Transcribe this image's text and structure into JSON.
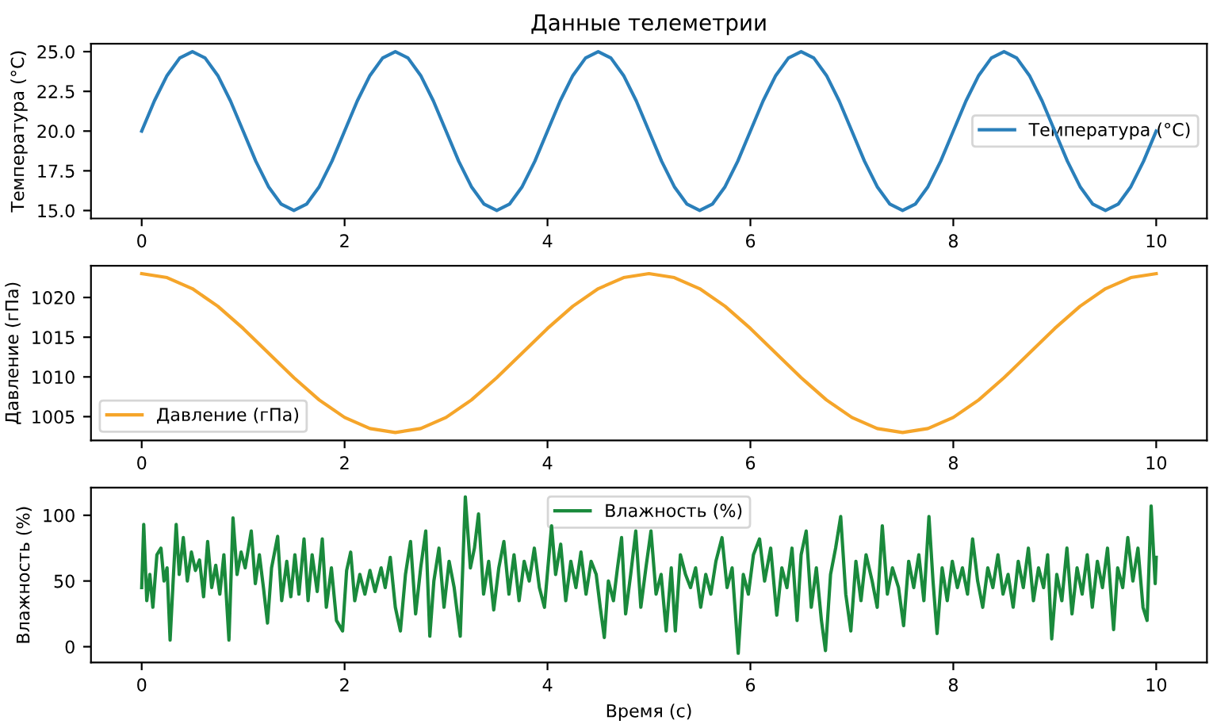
{
  "chart_data": [
    {
      "type": "line",
      "title": "Данные телеметрии",
      "ylabel": "Температура (°C)",
      "legend": "center right",
      "grid": false,
      "xlim": [
        -0.5,
        10.5
      ],
      "ylim": [
        14.5,
        25.5
      ],
      "xticks": [
        0,
        2,
        4,
        6,
        8,
        10
      ],
      "yticks": [
        {
          "value": 15,
          "label": "15.0"
        },
        17.5,
        {
          "value": 20,
          "label": "20.0"
        },
        22.5,
        {
          "value": 25,
          "label": "25.0"
        }
      ],
      "x": [
        0,
        0.125,
        0.25,
        0.375,
        0.5,
        0.625,
        0.75,
        0.875,
        1,
        1.125,
        1.25,
        1.375,
        1.5,
        1.625,
        1.75,
        1.875,
        2,
        2.125,
        2.25,
        2.375,
        2.5,
        2.625,
        2.75,
        2.875,
        3,
        3.125,
        3.25,
        3.375,
        3.5,
        3.625,
        3.75,
        3.875,
        4,
        4.125,
        4.25,
        4.375,
        4.5,
        4.625,
        4.75,
        4.875,
        5,
        5.125,
        5.25,
        5.375,
        5.5,
        5.625,
        5.75,
        5.875,
        6,
        6.125,
        6.25,
        6.375,
        6.5,
        6.625,
        6.75,
        6.875,
        7,
        7.125,
        7.25,
        7.375,
        7.5,
        7.625,
        7.75,
        7.875,
        8,
        8.125,
        8.25,
        8.375,
        8.5,
        8.625,
        8.75,
        8.875,
        9,
        9.125,
        9.25,
        9.375,
        9.5,
        9.625,
        9.75,
        9.875,
        10
      ],
      "series": [
        {
          "name": "Температура (°C)",
          "color": "#2a7fba",
          "values": [
            20,
            21.9,
            23.5,
            24.6,
            25,
            24.6,
            23.5,
            21.9,
            20,
            18.1,
            16.5,
            15.4,
            15,
            15.4,
            16.5,
            18.1,
            20,
            21.9,
            23.5,
            24.6,
            25,
            24.6,
            23.5,
            21.9,
            20,
            18.1,
            16.5,
            15.4,
            15,
            15.4,
            16.5,
            18.1,
            20,
            21.9,
            23.5,
            24.6,
            25,
            24.6,
            23.5,
            21.9,
            20,
            18.1,
            16.5,
            15.4,
            15,
            15.4,
            16.5,
            18.1,
            20,
            21.9,
            23.5,
            24.6,
            25,
            24.6,
            23.5,
            21.9,
            20,
            18.1,
            16.5,
            15.4,
            15,
            15.4,
            16.5,
            18.1,
            20,
            21.9,
            23.5,
            24.6,
            25,
            24.6,
            23.5,
            21.9,
            20,
            18.1,
            16.5,
            15.4,
            15,
            15.4,
            16.5,
            18.1,
            20
          ]
        }
      ]
    },
    {
      "type": "line",
      "ylabel": "Давление (гПа)",
      "legend": "bottom left",
      "grid": false,
      "xlim": [
        -0.5,
        10.5
      ],
      "ylim": [
        1002,
        1024
      ],
      "xticks": [
        0,
        2,
        4,
        6,
        8,
        10
      ],
      "yticks": [
        1005,
        1010,
        1015,
        1020
      ],
      "x": [
        0,
        0.25,
        0.5,
        0.75,
        1,
        1.25,
        1.5,
        1.75,
        2,
        2.25,
        2.5,
        2.75,
        3,
        3.25,
        3.5,
        3.75,
        4,
        4.25,
        4.5,
        4.75,
        5,
        5.25,
        5.5,
        5.75,
        6,
        6.25,
        6.5,
        6.75,
        7,
        7.25,
        7.5,
        7.75,
        8,
        8.25,
        8.5,
        8.75,
        9,
        9.25,
        9.5,
        9.75,
        10
      ],
      "series": [
        {
          "name": "Давление (гПа)",
          "color": "#f5a52a",
          "values": [
            1023,
            1022.5,
            1021.1,
            1018.9,
            1016.1,
            1013,
            1009.9,
            1007.1,
            1004.9,
            1003.5,
            1003,
            1003.5,
            1004.9,
            1007.1,
            1009.9,
            1013,
            1016.1,
            1018.9,
            1021.1,
            1022.5,
            1023,
            1022.5,
            1021.1,
            1018.9,
            1016.1,
            1013,
            1009.9,
            1007.1,
            1004.9,
            1003.5,
            1003,
            1003.5,
            1004.9,
            1007.1,
            1009.9,
            1013,
            1016.1,
            1018.9,
            1021.1,
            1022.5,
            1023
          ]
        }
      ]
    },
    {
      "type": "line",
      "xlabel": "Время (с)",
      "ylabel": "Влажность (%)",
      "legend": "top",
      "grid": false,
      "xlim": [
        -0.5,
        10.5
      ],
      "ylim": [
        -12,
        121
      ],
      "xticks": [
        0,
        2,
        4,
        6,
        8,
        10
      ],
      "yticks": [
        0,
        50,
        100
      ],
      "x": [
        0,
        0.02,
        0.05,
        0.08,
        0.11,
        0.15,
        0.19,
        0.22,
        0.25,
        0.28,
        0.31,
        0.34,
        0.37,
        0.41,
        0.45,
        0.49,
        0.53,
        0.57,
        0.61,
        0.65,
        0.69,
        0.73,
        0.77,
        0.81,
        0.86,
        0.9,
        0.94,
        0.98,
        1.02,
        1.08,
        1.12,
        1.16,
        1.2,
        1.24,
        1.28,
        1.34,
        1.38,
        1.43,
        1.47,
        1.51,
        1.55,
        1.6,
        1.64,
        1.68,
        1.73,
        1.78,
        1.82,
        1.87,
        1.92,
        1.98,
        2.02,
        2.06,
        2.1,
        2.15,
        2.2,
        2.25,
        2.3,
        2.36,
        2.4,
        2.45,
        2.5,
        2.55,
        2.6,
        2.65,
        2.7,
        2.75,
        2.8,
        2.84,
        2.88,
        2.93,
        2.98,
        3.03,
        3.08,
        3.14,
        3.19,
        3.24,
        3.28,
        3.32,
        3.37,
        3.42,
        3.47,
        3.52,
        3.57,
        3.62,
        3.67,
        3.72,
        3.77,
        3.82,
        3.87,
        3.92,
        3.97,
        4.04,
        4.08,
        4.13,
        4.18,
        4.23,
        4.28,
        4.33,
        4.38,
        4.43,
        4.48,
        4.52,
        4.56,
        4.6,
        4.65,
        4.69,
        4.73,
        4.77,
        4.82,
        4.87,
        4.92,
        4.97,
        5.02,
        5.07,
        5.12,
        5.17,
        5.22,
        5.26,
        5.31,
        5.36,
        5.41,
        5.46,
        5.51,
        5.56,
        5.61,
        5.66,
        5.72,
        5.77,
        5.82,
        5.88,
        5.93,
        5.98,
        6.03,
        6.09,
        6.14,
        6.2,
        6.26,
        6.31,
        6.36,
        6.41,
        6.46,
        6.5,
        6.55,
        6.6,
        6.65,
        6.7,
        6.74,
        6.79,
        6.84,
        6.89,
        6.94,
        6.99,
        7.04,
        7.09,
        7.14,
        7.2,
        7.25,
        7.3,
        7.35,
        7.4,
        7.46,
        7.51,
        7.56,
        7.61,
        7.66,
        7.71,
        7.76,
        7.8,
        7.84,
        7.89,
        7.94,
        7.99,
        8.04,
        8.09,
        8.14,
        8.19,
        8.24,
        8.29,
        8.34,
        8.39,
        8.44,
        8.49,
        8.54,
        8.59,
        8.64,
        8.69,
        8.74,
        8.79,
        8.84,
        8.89,
        8.93,
        8.97,
        9.02,
        9.07,
        9.12,
        9.17,
        9.22,
        9.27,
        9.32,
        9.37,
        9.42,
        9.47,
        9.52,
        9.58,
        9.62,
        9.67,
        9.72,
        9.77,
        9.82,
        9.87,
        9.91,
        9.95,
        9.99,
        10
      ],
      "series": [
        {
          "name": "Влажность (%)",
          "color": "#1a8a3c",
          "values": [
            45,
            93,
            35,
            55,
            30,
            70,
            75,
            50,
            60,
            5,
            50,
            93,
            55,
            83,
            50,
            72,
            58,
            66,
            38,
            80,
            45,
            62,
            40,
            70,
            5,
            98,
            55,
            72,
            60,
            88,
            48,
            70,
            45,
            18,
            60,
            84,
            35,
            65,
            38,
            70,
            40,
            82,
            35,
            70,
            42,
            82,
            30,
            60,
            20,
            12,
            58,
            72,
            35,
            55,
            40,
            58,
            42,
            60,
            45,
            68,
            30,
            12,
            55,
            80,
            25,
            60,
            88,
            8,
            50,
            75,
            30,
            65,
            45,
            8,
            114,
            60,
            75,
            101,
            40,
            65,
            28,
            60,
            80,
            40,
            70,
            35,
            65,
            50,
            75,
            45,
            30,
            92,
            55,
            78,
            35,
            65,
            45,
            72,
            40,
            65,
            55,
            30,
            7,
            50,
            35,
            60,
            83,
            25,
            55,
            88,
            30,
            60,
            88,
            40,
            55,
            12,
            60,
            12,
            70,
            55,
            45,
            60,
            30,
            55,
            40,
            65,
            83,
            45,
            60,
            -5,
            55,
            40,
            70,
            82,
            50,
            75,
            24,
            60,
            45,
            75,
            20,
            70,
            88,
            30,
            60,
            20,
            -3,
            55,
            75,
            99,
            40,
            12,
            65,
            35,
            70,
            50,
            30,
            92,
            40,
            60,
            45,
            16,
            65,
            45,
            70,
            35,
            99,
            50,
            10,
            60,
            35,
            65,
            45,
            60,
            40,
            82,
            50,
            30,
            60,
            45,
            70,
            40,
            55,
            30,
            65,
            45,
            75,
            35,
            60,
            45,
            70,
            6,
            55,
            35,
            75,
            25,
            60,
            40,
            70,
            30,
            65,
            45,
            75,
            13,
            60,
            45,
            83,
            50,
            75,
            30,
            20,
            107,
            48,
            68
          ]
        }
      ]
    }
  ]
}
